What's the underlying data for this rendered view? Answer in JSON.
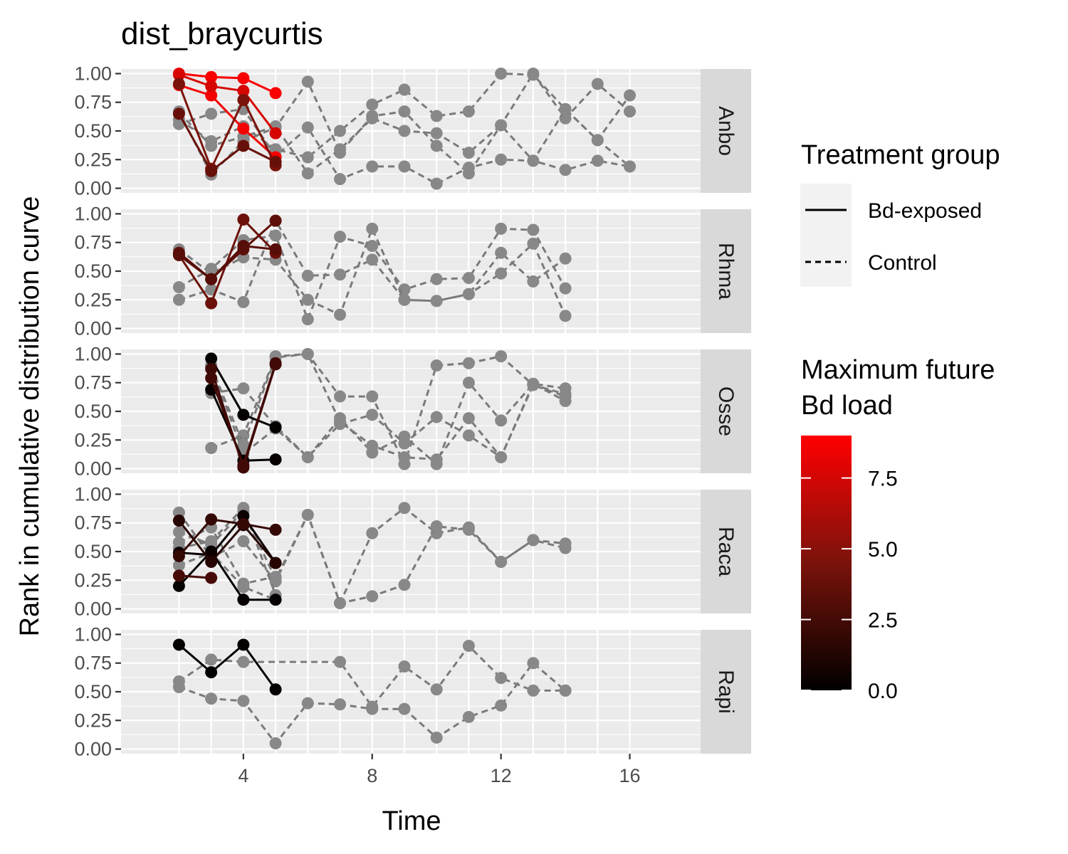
{
  "chart_data": {
    "type": "line",
    "title": "dist_braycurtis",
    "xlabel": "Time",
    "ylabel": "Rank in cumulative distribution curve",
    "xlim": [
      0.2,
      18.2
    ],
    "ylim": [
      -0.04,
      1.04
    ],
    "x_ticks": [
      4,
      8,
      12,
      16
    ],
    "x_tick_labels": [
      "4",
      "8",
      "12",
      "16"
    ],
    "y_ticks": [
      0,
      0.25,
      0.5,
      0.75,
      1
    ],
    "y_tick_labels": [
      "0.00",
      "0.25",
      "0.50",
      "0.75",
      "1.00"
    ],
    "grid": true,
    "facet_by": "species",
    "legend_position": "right",
    "colors": {
      "control": "#7a7a7a",
      "control_point": "#888888",
      "low": "#000000",
      "high": "#ff0000"
    },
    "legends": {
      "linetype": {
        "title": "Treatment group",
        "entries": [
          {
            "label": "Bd-exposed",
            "linetype": "solid"
          },
          {
            "label": "Control",
            "linetype": "dashed"
          }
        ]
      },
      "color": {
        "title_lines": [
          "Maximum future",
          "Bd load"
        ],
        "range": [
          0,
          9
        ],
        "breaks": [
          0,
          2.5,
          5,
          7.5
        ],
        "break_labels": [
          "0.0",
          "2.5",
          "5.0",
          "7.5"
        ]
      }
    },
    "panels": [
      {
        "label": "Anbo",
        "series": [
          {
            "group": "Control",
            "x": [
              2,
              3,
              4,
              5,
              6,
              7,
              8,
              9,
              10,
              11,
              12,
              13,
              14,
              15,
              16
            ],
            "y": [
              0.67,
              0.12,
              0.41,
              0.53,
              0.93,
              0.31,
              0.63,
              0.67,
              0.37,
              0.13,
              0.55,
              1.0,
              0.61,
              0.91,
              0.67
            ]
          },
          {
            "group": "Control",
            "x": [
              2,
              3,
              4,
              5,
              6,
              7,
              8,
              9,
              10,
              11,
              12,
              13,
              14,
              15,
              16
            ],
            "y": [
              0.56,
              0.65,
              0.69,
              0.28,
              0.53,
              0.08,
              0.19,
              0.19,
              0.04,
              0.18,
              0.25,
              0.24,
              0.16,
              0.24,
              0.19
            ]
          },
          {
            "group": "Control",
            "x": [
              2,
              3,
              4,
              5,
              6,
              7,
              8,
              9,
              10,
              11,
              12,
              13,
              14,
              15,
              16
            ],
            "y": [
              0.6,
              0.41,
              0.54,
              0.34,
              0.27,
              0.5,
              0.73,
              0.86,
              0.63,
              0.67,
              1.0,
              0.99,
              0.69,
              0.42,
              0.81
            ]
          },
          {
            "group": "Control",
            "x": [
              2,
              3,
              4,
              5,
              6,
              7,
              8,
              9,
              10,
              11,
              12,
              13,
              14,
              15,
              16
            ],
            "y": [
              0.66,
              0.37,
              0.45,
              0.54,
              0.13,
              0.34,
              0.61,
              0.5,
              0.48,
              0.31,
              0.55,
              0.24,
              0.69,
              0.42,
              0.19
            ]
          },
          {
            "group": "Bd-exposed",
            "load": 8.8,
            "x": [
              2,
              3,
              4,
              5
            ],
            "y": [
              1.0,
              0.97,
              0.96,
              0.83
            ]
          },
          {
            "group": "Bd-exposed",
            "load": 8.6,
            "x": [
              2,
              3,
              4,
              5
            ],
            "y": [
              0.9,
              0.81,
              0.52,
              0.27
            ]
          },
          {
            "group": "Bd-exposed",
            "load": 7.6,
            "x": [
              2,
              3,
              4,
              5
            ],
            "y": [
              0.99,
              0.89,
              0.85,
              0.48
            ]
          },
          {
            "group": "Bd-exposed",
            "load": 4.5,
            "x": [
              2,
              3,
              4,
              5
            ],
            "y": [
              0.91,
              0.17,
              0.77,
              0.2
            ]
          },
          {
            "group": "Bd-exposed",
            "load": 3.8,
            "x": [
              2,
              3,
              4,
              5
            ],
            "y": [
              0.65,
              0.15,
              0.37,
              0.23
            ]
          }
        ]
      },
      {
        "label": "Rhma",
        "series": [
          {
            "group": "Control",
            "x": [
              2,
              3,
              4,
              5,
              6,
              7,
              8,
              9,
              10,
              11,
              12,
              13,
              14
            ],
            "y": [
              0.25,
              0.34,
              0.23,
              0.94,
              0.46,
              0.47,
              0.6,
              0.25,
              0.24,
              0.3,
              0.66,
              0.41,
              0.61
            ]
          },
          {
            "group": "Control",
            "x": [
              2,
              3,
              4,
              5,
              6,
              7,
              8,
              9,
              10,
              11,
              12,
              13,
              14
            ],
            "y": [
              0.36,
              0.52,
              0.77,
              0.81,
              0.08,
              0.8,
              0.72,
              0.34,
              0.43,
              0.44,
              0.87,
              0.86,
              0.35
            ]
          },
          {
            "group": "Control",
            "x": [
              2,
              3,
              4,
              5,
              6,
              7,
              8,
              9,
              10,
              11,
              12,
              13,
              14
            ],
            "y": [
              0.69,
              0.48,
              0.62,
              0.6,
              0.25,
              0.12,
              0.87,
              0.25,
              0.24,
              0.3,
              0.48,
              0.74,
              0.11
            ]
          },
          {
            "group": "Bd-exposed",
            "load": 4.0,
            "x": [
              2,
              3,
              4,
              5
            ],
            "y": [
              0.64,
              0.22,
              0.95,
              0.66
            ]
          },
          {
            "group": "Bd-exposed",
            "load": 3.5,
            "x": [
              2,
              3,
              4,
              5
            ],
            "y": [
              0.66,
              0.43,
              0.69,
              0.94
            ]
          },
          {
            "group": "Bd-exposed",
            "load": 3.2,
            "x": [
              2,
              3,
              4,
              5
            ],
            "y": [
              0.64,
              0.43,
              0.72,
              0.69
            ]
          }
        ]
      },
      {
        "label": "Osse",
        "series": [
          {
            "group": "Control",
            "x": [
              3,
              4,
              5,
              6,
              7,
              8,
              9,
              10,
              11,
              12,
              13,
              14
            ],
            "y": [
              0.18,
              0.29,
              0.98,
              1.0,
              0.63,
              0.63,
              0.04,
              0.9,
              0.92,
              0.98,
              0.73,
              0.65
            ]
          },
          {
            "group": "Control",
            "x": [
              3,
              4,
              5,
              6,
              7,
              8,
              9,
              10,
              11,
              12,
              13,
              14
            ],
            "y": [
              0.66,
              0.7,
              0.37,
              0.1,
              0.44,
              0.14,
              0.28,
              0.04,
              0.75,
              0.42,
              0.74,
              0.59
            ]
          },
          {
            "group": "Control",
            "x": [
              3,
              4,
              5,
              6,
              7,
              8,
              9,
              10,
              11,
              12,
              13,
              14
            ],
            "y": [
              0.9,
              0.13,
              0.35,
              0.1,
              0.39,
              0.47,
              0.22,
              0.45,
              0.29,
              0.1,
              0.74,
              0.7
            ]
          },
          {
            "group": "Control",
            "x": [
              3,
              4,
              5,
              6,
              7,
              8,
              9,
              10,
              11,
              12,
              13,
              14
            ],
            "y": [
              0.89,
              0.21,
              0.97,
              1.0,
              0.41,
              0.2,
              0.1,
              0.08,
              0.44,
              0.1,
              0.73,
              0.63
            ]
          },
          {
            "group": "Bd-exposed",
            "load": 0.2,
            "x": [
              3,
              4,
              5
            ],
            "y": [
              0.96,
              0.47,
              0.36
            ]
          },
          {
            "group": "Bd-exposed",
            "load": 0.3,
            "x": [
              3,
              4,
              5
            ],
            "y": [
              0.69,
              0.07,
              0.08
            ]
          },
          {
            "group": "Bd-exposed",
            "load": 2.2,
            "x": [
              3,
              4,
              5
            ],
            "y": [
              0.87,
              0.01,
              0.91
            ]
          },
          {
            "group": "Bd-exposed",
            "load": 2.4,
            "x": [
              3,
              4,
              5
            ],
            "y": [
              0.79,
              0.03,
              0.92
            ]
          }
        ]
      },
      {
        "label": "Raca",
        "series": [
          {
            "group": "Control",
            "x": [
              2,
              3,
              4,
              5,
              6,
              7,
              8,
              9,
              10,
              11,
              12,
              13,
              14
            ],
            "y": [
              0.84,
              0.45,
              0.59,
              0.24,
              0.82,
              0.05,
              0.66,
              0.88,
              0.66,
              0.71,
              0.41,
              0.6,
              0.57
            ]
          },
          {
            "group": "Control",
            "x": [
              2,
              3,
              4,
              5,
              6,
              7,
              8,
              9,
              10,
              11,
              12,
              13,
              14
            ],
            "y": [
              0.67,
              0.56,
              0.85,
              0.26,
              0.82,
              0.05,
              0.11,
              0.21,
              0.72,
              0.69,
              0.41,
              0.6,
              0.53
            ]
          },
          {
            "group": "Control",
            "x": [
              2,
              3,
              4,
              5
            ],
            "y": [
              0.58,
              0.71,
              0.22,
              0.28
            ]
          },
          {
            "group": "Control",
            "x": [
              2,
              3,
              4,
              5
            ],
            "y": [
              0.53,
              0.59,
              0.88,
              0.12
            ]
          },
          {
            "group": "Control",
            "x": [
              2,
              3,
              4,
              5
            ],
            "y": [
              0.38,
              0.49,
              0.19,
              0.08
            ]
          },
          {
            "group": "Bd-exposed",
            "load": 0.2,
            "x": [
              2,
              3,
              4,
              5
            ],
            "y": [
              0.2,
              0.5,
              0.08,
              0.08
            ]
          },
          {
            "group": "Bd-exposed",
            "load": 0.4,
            "x": [
              2,
              3,
              4,
              5
            ],
            "y": [
              0.49,
              0.47,
              0.81,
              0.4
            ]
          },
          {
            "group": "Bd-exposed",
            "load": 1.4,
            "x": [
              2,
              3,
              4,
              5
            ],
            "y": [
              0.77,
              0.41,
              0.73,
              0.4
            ]
          },
          {
            "group": "Bd-exposed",
            "load": 1.9,
            "x": [
              2,
              3,
              4,
              5
            ],
            "y": [
              0.46,
              0.78,
              0.74,
              0.69
            ]
          },
          {
            "group": "Bd-exposed",
            "load": 2.6,
            "x": [
              2,
              3
            ],
            "y": [
              0.29,
              0.27
            ]
          }
        ]
      },
      {
        "label": "Rapi",
        "series": [
          {
            "group": "Control",
            "x": [
              2,
              3,
              4,
              5,
              6,
              7,
              8,
              9,
              10,
              11,
              12,
              13,
              14
            ],
            "y": [
              0.54,
              0.44,
              0.42,
              0.05,
              0.4,
              0.39,
              0.35,
              0.35,
              0.1,
              0.28,
              0.38,
              0.75,
              0.51
            ]
          },
          {
            "group": "Control",
            "x": [
              2,
              3,
              4,
              7,
              8,
              9,
              10,
              11,
              12,
              13,
              14
            ],
            "y": [
              0.59,
              0.78,
              0.76,
              0.76,
              0.37,
              0.72,
              0.52,
              0.9,
              0.62,
              0.51,
              0.51
            ]
          },
          {
            "group": "Bd-exposed",
            "load": 0.1,
            "x": [
              2,
              3,
              4,
              5
            ],
            "y": [
              0.91,
              0.67,
              0.91,
              0.52
            ]
          }
        ]
      }
    ]
  }
}
